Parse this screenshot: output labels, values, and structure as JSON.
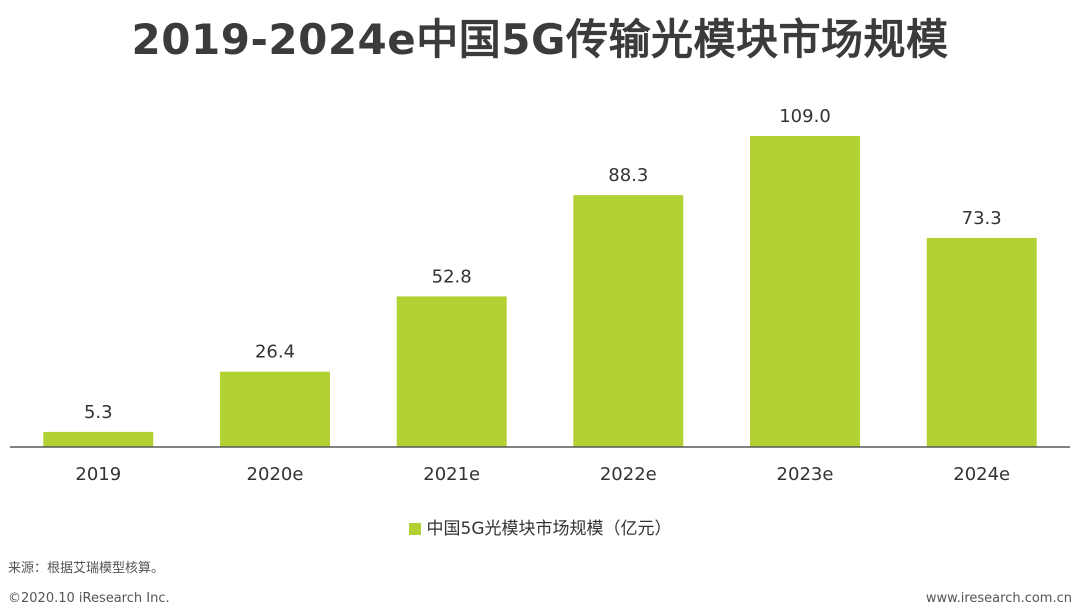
{
  "title": "2019-2024e中国5G传输光模块市场规模",
  "legend": {
    "label": "中国5G光模块市场规模（亿元）"
  },
  "source": "来源：根据艾瑞模型核算。",
  "footer": {
    "copyright": "©2020.10 iResearch Inc.",
    "website": "www.iresearch.com.cn"
  },
  "colors": {
    "bar": "#b2d234",
    "axis": "#595959"
  },
  "chart_data": {
    "type": "bar",
    "title": "2019-2024e中国5G传输光模块市场规模",
    "categories": [
      "2019",
      "2020e",
      "2021e",
      "2022e",
      "2023e",
      "2024e"
    ],
    "series": [
      {
        "name": "中国5G光模块市场规模（亿元）",
        "values": [
          5.3,
          26.4,
          52.8,
          88.3,
          109.0,
          73.3
        ],
        "labels": [
          "5.3",
          "26.4",
          "52.8",
          "88.3",
          "109.0",
          "73.3"
        ]
      }
    ],
    "ylim": [
      0,
      109.0
    ],
    "grid": false,
    "legend_position": "bottom"
  }
}
